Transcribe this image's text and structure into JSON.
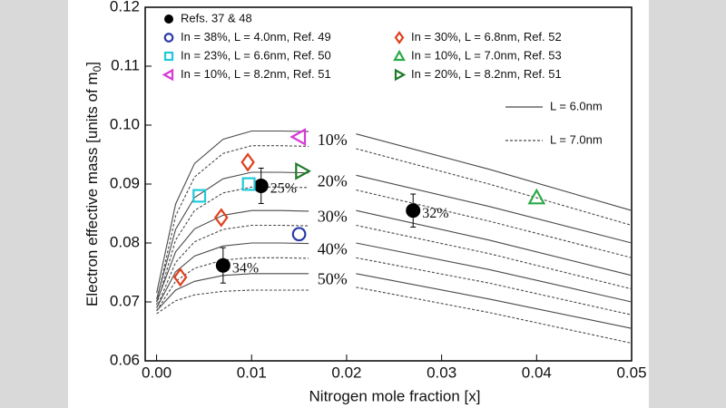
{
  "chart_data": {
    "type": "line",
    "ylabel": [
      "Electron effective mass [units of m",
      "0",
      "]"
    ],
    "xlabel": "Nitrogen mole fraction [x]",
    "xlim": [
      -0.0012,
      0.05
    ],
    "ylim": [
      0.06,
      0.12
    ],
    "xticks": [
      {
        "value": 0,
        "label": "0.00"
      },
      0.01,
      0.02,
      0.03,
      0.04,
      0.05
    ],
    "yticks": [
      0.06,
      0.07,
      0.08,
      0.09,
      {
        "value": 0.1,
        "label": "0.10"
      },
      0.11,
      0.12
    ],
    "x": [
      0,
      0.002,
      0.004,
      0.007,
      0.01,
      0.013,
      0.016,
      0.0185,
      0.021,
      0.035,
      0.05
    ],
    "curve_labels": [
      "10%",
      "20%",
      "30%",
      "40%",
      "50%"
    ],
    "series": [
      {
        "name": "L = 6.0nm",
        "dash": "solid",
        "color": "#4a4a4a",
        "curves": [
          [
            0.0715,
            0.0866,
            0.0935,
            0.0976,
            0.099,
            0.099,
            0.0989,
            null,
            0.0985,
            0.0925,
            0.0855
          ],
          [
            0.0705,
            0.0823,
            0.0877,
            0.0909,
            0.092,
            0.092,
            0.0919,
            null,
            0.0915,
            0.0862,
            0.08
          ],
          [
            0.07,
            0.0785,
            0.0824,
            0.0847,
            0.0855,
            0.0855,
            0.0854,
            null,
            0.0855,
            0.0805,
            0.0745
          ],
          [
            0.069,
            0.0751,
            0.0778,
            0.0795,
            0.08,
            0.08,
            0.0799,
            null,
            0.08,
            0.0755,
            0.07
          ],
          [
            0.0685,
            0.072,
            0.0735,
            0.0745,
            0.0748,
            0.0748,
            0.0748,
            null,
            0.0748,
            0.0705,
            0.0655
          ]
        ]
      },
      {
        "name": "L = 7.0nm",
        "dash": "dashed",
        "color": "#4a4a4a",
        "curves": [
          [
            0.07,
            0.0846,
            0.0912,
            0.0952,
            0.0965,
            0.0965,
            0.0964,
            null,
            0.096,
            0.09,
            0.083
          ],
          [
            0.0695,
            0.0805,
            0.0855,
            0.0885,
            0.0895,
            0.0895,
            0.0894,
            null,
            0.089,
            0.0837,
            0.0775
          ],
          [
            0.069,
            0.0767,
            0.0802,
            0.0823,
            0.083,
            0.083,
            0.0829,
            null,
            0.083,
            0.0782,
            0.0722
          ],
          [
            0.0685,
            0.0735,
            0.0757,
            0.0771,
            0.0775,
            0.0775,
            0.0774,
            null,
            0.0775,
            0.0732,
            0.0678
          ],
          [
            0.068,
            0.0702,
            0.0712,
            0.0718,
            0.072,
            0.072,
            0.072,
            null,
            0.0725,
            0.0682,
            0.063
          ]
        ]
      }
    ],
    "markers": [
      {
        "name": "Refs. 37 & 48",
        "marker": "disc",
        "color": "#000000",
        "x": [
          0.007,
          0.011,
          0.027
        ],
        "y": [
          0.0762,
          0.0897,
          0.0855
        ],
        "yerr": [
          0.003,
          0.003,
          0.0028
        ],
        "labels": [
          "34%",
          "25%",
          "32%"
        ]
      },
      {
        "name": "In = 38%, L = 4.0nm, Ref. 49",
        "marker": "circle",
        "color": "#2a3aa8",
        "x": [
          0.015
        ],
        "y": [
          0.0815
        ]
      },
      {
        "name": "In = 23%, L = 6.6nm, Ref. 50",
        "marker": "square",
        "color": "#22c8d8",
        "x": [
          0.0045,
          0.0097
        ],
        "y": [
          0.088,
          0.09
        ]
      },
      {
        "name": "In = 10%, L = 8.2nm, Ref. 51",
        "marker": "tri-left",
        "color": "#d63ad6",
        "x": [
          0.015
        ],
        "y": [
          0.098
        ]
      },
      {
        "name": "In = 30%, L = 6.8nm, Ref. 52",
        "marker": "diamond",
        "color": "#e0401c",
        "x": [
          0.0025,
          0.0068,
          0.0096
        ],
        "y": [
          0.0742,
          0.0843,
          0.0937
        ]
      },
      {
        "name": "In = 10%, L = 7.0nm, Ref. 53",
        "marker": "tri-up",
        "color": "#2aaa4a",
        "x": [
          0.04
        ],
        "y": [
          0.0877
        ]
      },
      {
        "name": "In = 20%, L = 8.2nm, Ref. 51",
        "marker": "tri-right",
        "color": "#1f7a2a",
        "x": [
          0.0153
        ],
        "y": [
          0.0922
        ]
      }
    ]
  }
}
